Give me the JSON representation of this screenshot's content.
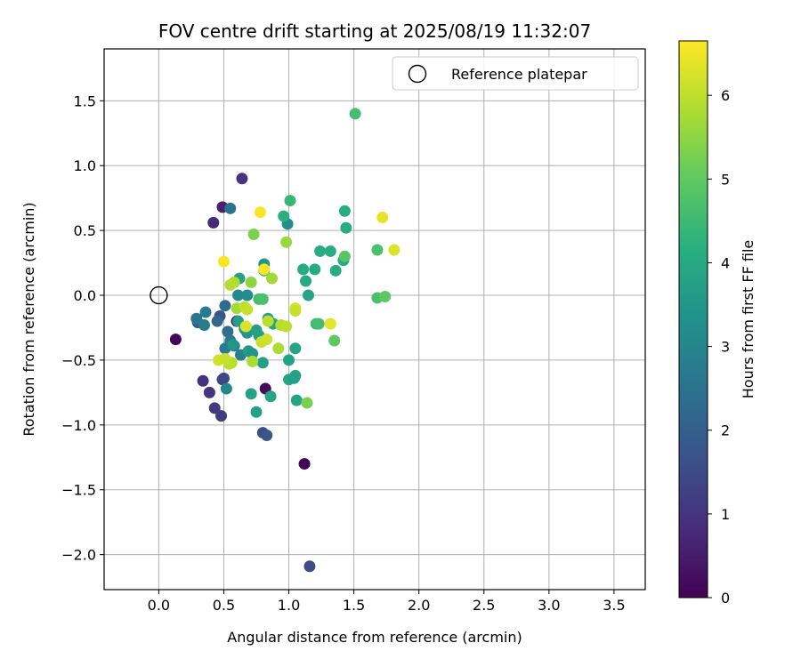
{
  "chart_data": {
    "type": "scatter",
    "title": "FOV centre drift starting at 2025/08/19 11:32:07",
    "xlabel": "Angular distance from reference (arcmin)",
    "ylabel": "Rotation from reference (arcmin)",
    "xlim": [
      -0.42,
      3.74
    ],
    "ylim": [
      -2.27,
      1.9
    ],
    "xticks": [
      0.0,
      0.5,
      1.0,
      1.5,
      2.0,
      2.5,
      3.0,
      3.5
    ],
    "xtick_labels": [
      "0.0",
      "0.5",
      "1.0",
      "1.5",
      "2.0",
      "2.5",
      "3.0",
      "3.5"
    ],
    "yticks": [
      -2.0,
      -1.5,
      -1.0,
      -0.5,
      0.0,
      0.5,
      1.0,
      1.5
    ],
    "ytick_labels": [
      "−2.0",
      "−1.5",
      "−1.0",
      "−0.5",
      "0.0",
      "0.5",
      "1.0",
      "1.5"
    ],
    "grid": true,
    "legend": {
      "placement": "top-right",
      "entries": [
        "Reference platepar"
      ]
    },
    "reference_point": {
      "name": "Reference platepar",
      "x": 0.0,
      "y": 0.0
    },
    "colorbar": {
      "label": "Hours from first FF file",
      "colormap": "viridis",
      "min": 0,
      "max": 6.65,
      "ticks": [
        0,
        1,
        2,
        3,
        4,
        5,
        6
      ],
      "tick_labels": [
        "0",
        "1",
        "2",
        "3",
        "4",
        "5",
        "6"
      ]
    },
    "points": [
      {
        "x": 0.13,
        "y": -0.34,
        "c": 0.1
      },
      {
        "x": 1.12,
        "y": -1.3,
        "c": 0.1
      },
      {
        "x": 0.82,
        "y": -0.72,
        "c": 0.2
      },
      {
        "x": 0.6,
        "y": -0.2,
        "c": 0.3
      },
      {
        "x": 0.49,
        "y": 0.68,
        "c": 0.6
      },
      {
        "x": 0.42,
        "y": 0.56,
        "c": 0.8
      },
      {
        "x": 0.64,
        "y": 0.9,
        "c": 1.0
      },
      {
        "x": 0.34,
        "y": -0.66,
        "c": 0.9
      },
      {
        "x": 0.39,
        "y": -0.75,
        "c": 1.0
      },
      {
        "x": 0.43,
        "y": -0.87,
        "c": 1.1
      },
      {
        "x": 0.48,
        "y": -0.93,
        "c": 1.2
      },
      {
        "x": 0.49,
        "y": -0.65,
        "c": 1.3
      },
      {
        "x": 0.5,
        "y": -0.64,
        "c": 1.4
      },
      {
        "x": 1.16,
        "y": -2.09,
        "c": 1.5
      },
      {
        "x": 0.8,
        "y": -1.06,
        "c": 1.6
      },
      {
        "x": 0.83,
        "y": -1.08,
        "c": 1.8
      },
      {
        "x": 0.47,
        "y": -0.16,
        "c": 1.7
      },
      {
        "x": 0.3,
        "y": -0.21,
        "c": 1.9
      },
      {
        "x": 0.45,
        "y": -0.2,
        "c": 2.2
      },
      {
        "x": 0.51,
        "y": -0.08,
        "c": 2.3
      },
      {
        "x": 0.53,
        "y": -0.28,
        "c": 2.4
      },
      {
        "x": 0.55,
        "y": 0.67,
        "c": 2.5
      },
      {
        "x": 0.29,
        "y": -0.18,
        "c": 2.6
      },
      {
        "x": 0.36,
        "y": -0.13,
        "c": 2.7
      },
      {
        "x": 0.35,
        "y": -0.23,
        "c": 2.8
      },
      {
        "x": 0.55,
        "y": -0.35,
        "c": 2.6
      },
      {
        "x": 0.51,
        "y": -0.41,
        "c": 2.7
      },
      {
        "x": 0.58,
        "y": -0.39,
        "c": 2.8
      },
      {
        "x": 0.63,
        "y": -0.46,
        "c": 2.9
      },
      {
        "x": 0.52,
        "y": -0.72,
        "c": 3.0
      },
      {
        "x": 0.61,
        "y": 0.0,
        "c": 3.1
      },
      {
        "x": 0.68,
        "y": 0.0,
        "c": 3.2
      },
      {
        "x": 0.66,
        "y": -0.26,
        "c": 3.3
      },
      {
        "x": 0.68,
        "y": -0.29,
        "c": 3.4
      },
      {
        "x": 0.69,
        "y": -0.43,
        "c": 3.6
      },
      {
        "x": 0.72,
        "y": -0.45,
        "c": 3.5
      },
      {
        "x": 0.57,
        "y": -0.38,
        "c": 3.5
      },
      {
        "x": 0.99,
        "y": 0.55,
        "c": 3.3
      },
      {
        "x": 0.81,
        "y": 0.24,
        "c": 3.5
      },
      {
        "x": 0.62,
        "y": 0.13,
        "c": 3.8
      },
      {
        "x": 0.61,
        "y": -0.2,
        "c": 3.7
      },
      {
        "x": 0.75,
        "y": -0.27,
        "c": 3.7
      },
      {
        "x": 0.77,
        "y": -0.31,
        "c": 3.8
      },
      {
        "x": 0.8,
        "y": -0.52,
        "c": 3.7
      },
      {
        "x": 0.71,
        "y": -0.76,
        "c": 3.8
      },
      {
        "x": 0.75,
        "y": -0.9,
        "c": 3.8
      },
      {
        "x": 0.86,
        "y": -0.78,
        "c": 3.9
      },
      {
        "x": 0.84,
        "y": -0.18,
        "c": 3.8
      },
      {
        "x": 0.88,
        "y": -0.22,
        "c": 3.9
      },
      {
        "x": 1.0,
        "y": -0.5,
        "c": 3.8
      },
      {
        "x": 1.0,
        "y": -0.65,
        "c": 3.9
      },
      {
        "x": 1.04,
        "y": -0.64,
        "c": 3.7
      },
      {
        "x": 1.05,
        "y": -0.62,
        "c": 3.8
      },
      {
        "x": 1.05,
        "y": -0.41,
        "c": 3.9
      },
      {
        "x": 1.06,
        "y": -0.81,
        "c": 3.9
      },
      {
        "x": 1.15,
        "y": 0.0,
        "c": 3.9
      },
      {
        "x": 1.11,
        "y": 0.2,
        "c": 4.0
      },
      {
        "x": 1.13,
        "y": 0.11,
        "c": 4.0
      },
      {
        "x": 1.2,
        "y": 0.2,
        "c": 4.0
      },
      {
        "x": 1.24,
        "y": 0.34,
        "c": 4.1
      },
      {
        "x": 1.32,
        "y": 0.34,
        "c": 4.1
      },
      {
        "x": 1.36,
        "y": 0.19,
        "c": 4.1
      },
      {
        "x": 1.42,
        "y": 0.27,
        "c": 4.0
      },
      {
        "x": 1.44,
        "y": 0.52,
        "c": 4.1
      },
      {
        "x": 1.43,
        "y": 0.65,
        "c": 4.1
      },
      {
        "x": 0.96,
        "y": 0.61,
        "c": 4.2
      },
      {
        "x": 0.81,
        "y": 0.19,
        "c": 4.5
      },
      {
        "x": 0.77,
        "y": -0.03,
        "c": 4.6
      },
      {
        "x": 0.8,
        "y": -0.03,
        "c": 4.7
      },
      {
        "x": 1.21,
        "y": -0.22,
        "c": 4.5
      },
      {
        "x": 1.23,
        "y": -0.22,
        "c": 4.6
      },
      {
        "x": 1.01,
        "y": 0.73,
        "c": 4.4
      },
      {
        "x": 1.51,
        "y": 1.4,
        "c": 4.6
      },
      {
        "x": 1.43,
        "y": 0.3,
        "c": 4.9
      },
      {
        "x": 1.68,
        "y": 0.35,
        "c": 4.7
      },
      {
        "x": 1.68,
        "y": -0.02,
        "c": 4.7
      },
      {
        "x": 1.74,
        "y": -0.01,
        "c": 5.0
      },
      {
        "x": 1.35,
        "y": -0.35,
        "c": 5.0
      },
      {
        "x": 1.14,
        "y": -0.83,
        "c": 5.3
      },
      {
        "x": 0.73,
        "y": 0.47,
        "c": 5.3
      },
      {
        "x": 0.98,
        "y": 0.41,
        "c": 5.6
      },
      {
        "x": 0.71,
        "y": 0.1,
        "c": 5.5
      },
      {
        "x": 0.87,
        "y": 0.13,
        "c": 5.7
      },
      {
        "x": 0.6,
        "y": -0.1,
        "c": 5.7
      },
      {
        "x": 0.58,
        "y": 0.1,
        "c": 5.8
      },
      {
        "x": 0.55,
        "y": 0.08,
        "c": 5.9
      },
      {
        "x": 0.66,
        "y": -0.09,
        "c": 6.0
      },
      {
        "x": 0.68,
        "y": -0.11,
        "c": 6.1
      },
      {
        "x": 0.84,
        "y": -0.2,
        "c": 6.0
      },
      {
        "x": 0.94,
        "y": -0.23,
        "c": 5.9
      },
      {
        "x": 0.98,
        "y": -0.24,
        "c": 6.0
      },
      {
        "x": 0.92,
        "y": -0.41,
        "c": 5.8
      },
      {
        "x": 0.72,
        "y": -0.51,
        "c": 5.8
      },
      {
        "x": 0.56,
        "y": -0.52,
        "c": 5.9
      },
      {
        "x": 0.54,
        "y": -0.53,
        "c": 6.0
      },
      {
        "x": 0.46,
        "y": -0.5,
        "c": 6.2
      },
      {
        "x": 0.51,
        "y": -0.49,
        "c": 6.1
      },
      {
        "x": 0.79,
        "y": -0.36,
        "c": 6.1
      },
      {
        "x": 0.83,
        "y": -0.34,
        "c": 6.2
      },
      {
        "x": 0.67,
        "y": -0.24,
        "c": 6.3
      },
      {
        "x": 1.05,
        "y": -0.1,
        "c": 6.2
      },
      {
        "x": 1.05,
        "y": -0.12,
        "c": 6.1
      },
      {
        "x": 1.32,
        "y": -0.22,
        "c": 6.4
      },
      {
        "x": 1.72,
        "y": 0.6,
        "c": 6.4
      },
      {
        "x": 1.81,
        "y": 0.35,
        "c": 6.3
      },
      {
        "x": 0.5,
        "y": 0.26,
        "c": 6.6
      },
      {
        "x": 0.78,
        "y": 0.64,
        "c": 6.6
      },
      {
        "x": 0.81,
        "y": 0.2,
        "c": 6.6
      }
    ]
  }
}
